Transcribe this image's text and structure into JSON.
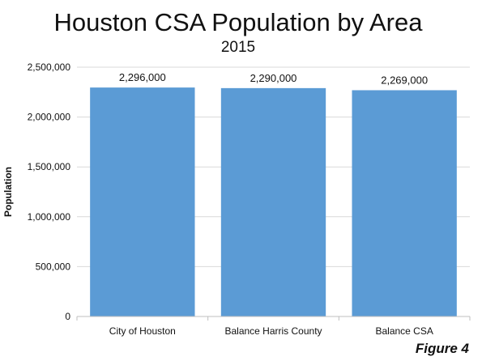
{
  "chart_data": {
    "type": "bar",
    "title": "Houston CSA Population by Area",
    "subtitle": "2015",
    "xlabel": "",
    "ylabel": "Population",
    "categories": [
      "City of Houston",
      "Balance Harris County",
      "Balance CSA"
    ],
    "values": [
      2296000,
      2290000,
      2269000
    ],
    "data_labels": [
      "2,296,000",
      "2,290,000",
      "2,269,000"
    ],
    "ylim": [
      0,
      2500000
    ],
    "y_ticks": [
      0,
      500000,
      1000000,
      1500000,
      2000000,
      2500000
    ],
    "y_tick_labels": [
      "0",
      "500,000",
      "1,000,000",
      "1,500,000",
      "2,000,000",
      "2,500,000"
    ],
    "grid": true,
    "legend": "none",
    "bar_color": "#5b9bd5",
    "figure_label": "Figure 4"
  }
}
